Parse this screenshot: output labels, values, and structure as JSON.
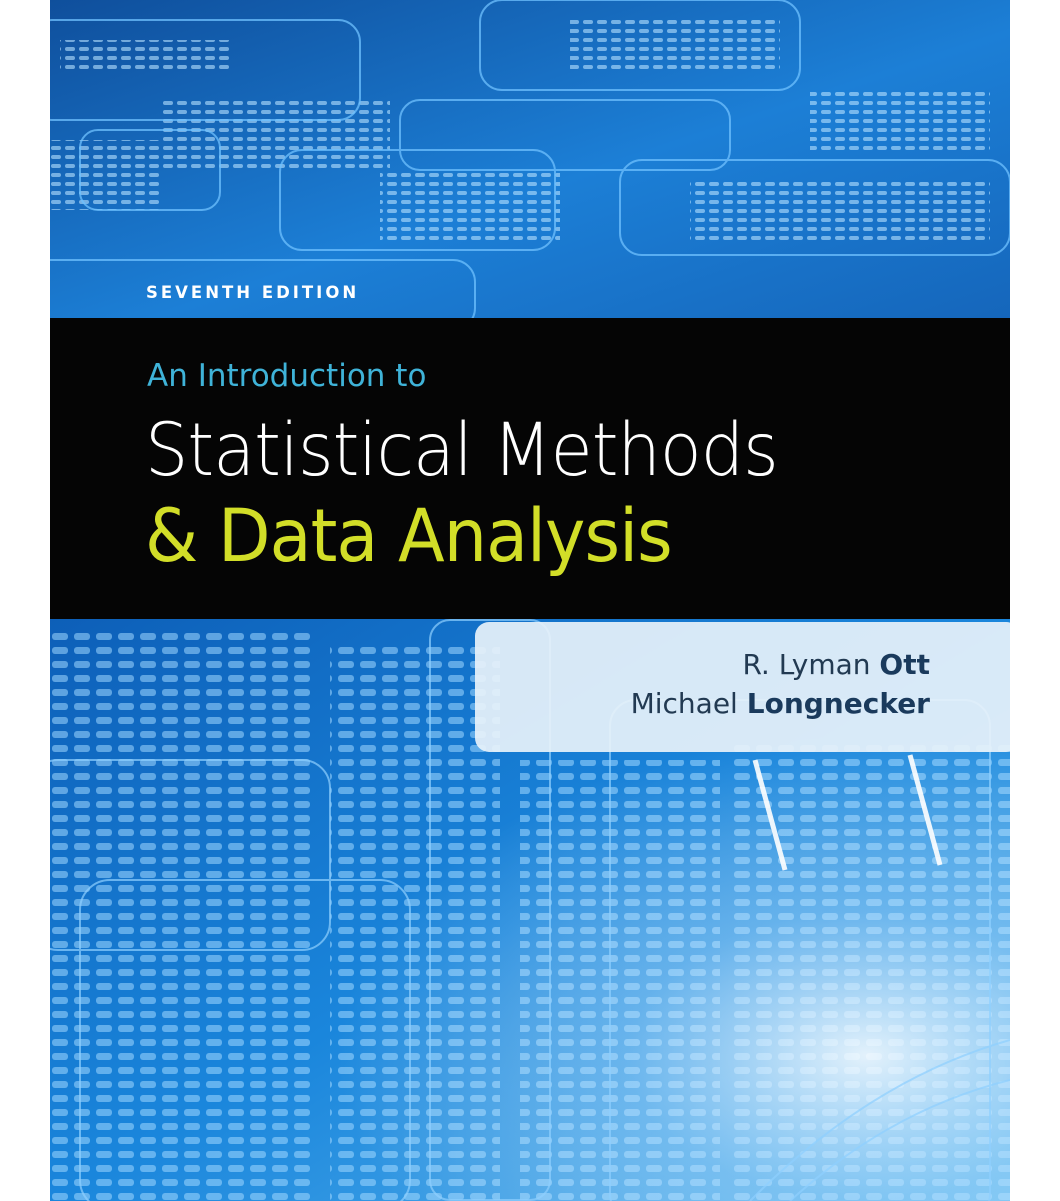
{
  "book": {
    "edition": "SEVENTH EDITION",
    "title_line1": "An Introduction to",
    "title_line2": "Statistical Methods",
    "title_line3": "& Data Analysis",
    "authors": [
      {
        "first": "R. Lyman",
        "last": "Ott"
      },
      {
        "first": "Michael",
        "last": "Longnecker"
      }
    ]
  },
  "colors": {
    "background_blue": "#1a6fc4",
    "title_band": "#050505",
    "title_cyan": "#3fb3d8",
    "title_white": "#ffffff",
    "title_yellow": "#d2de28",
    "author_text": "#223a52"
  }
}
